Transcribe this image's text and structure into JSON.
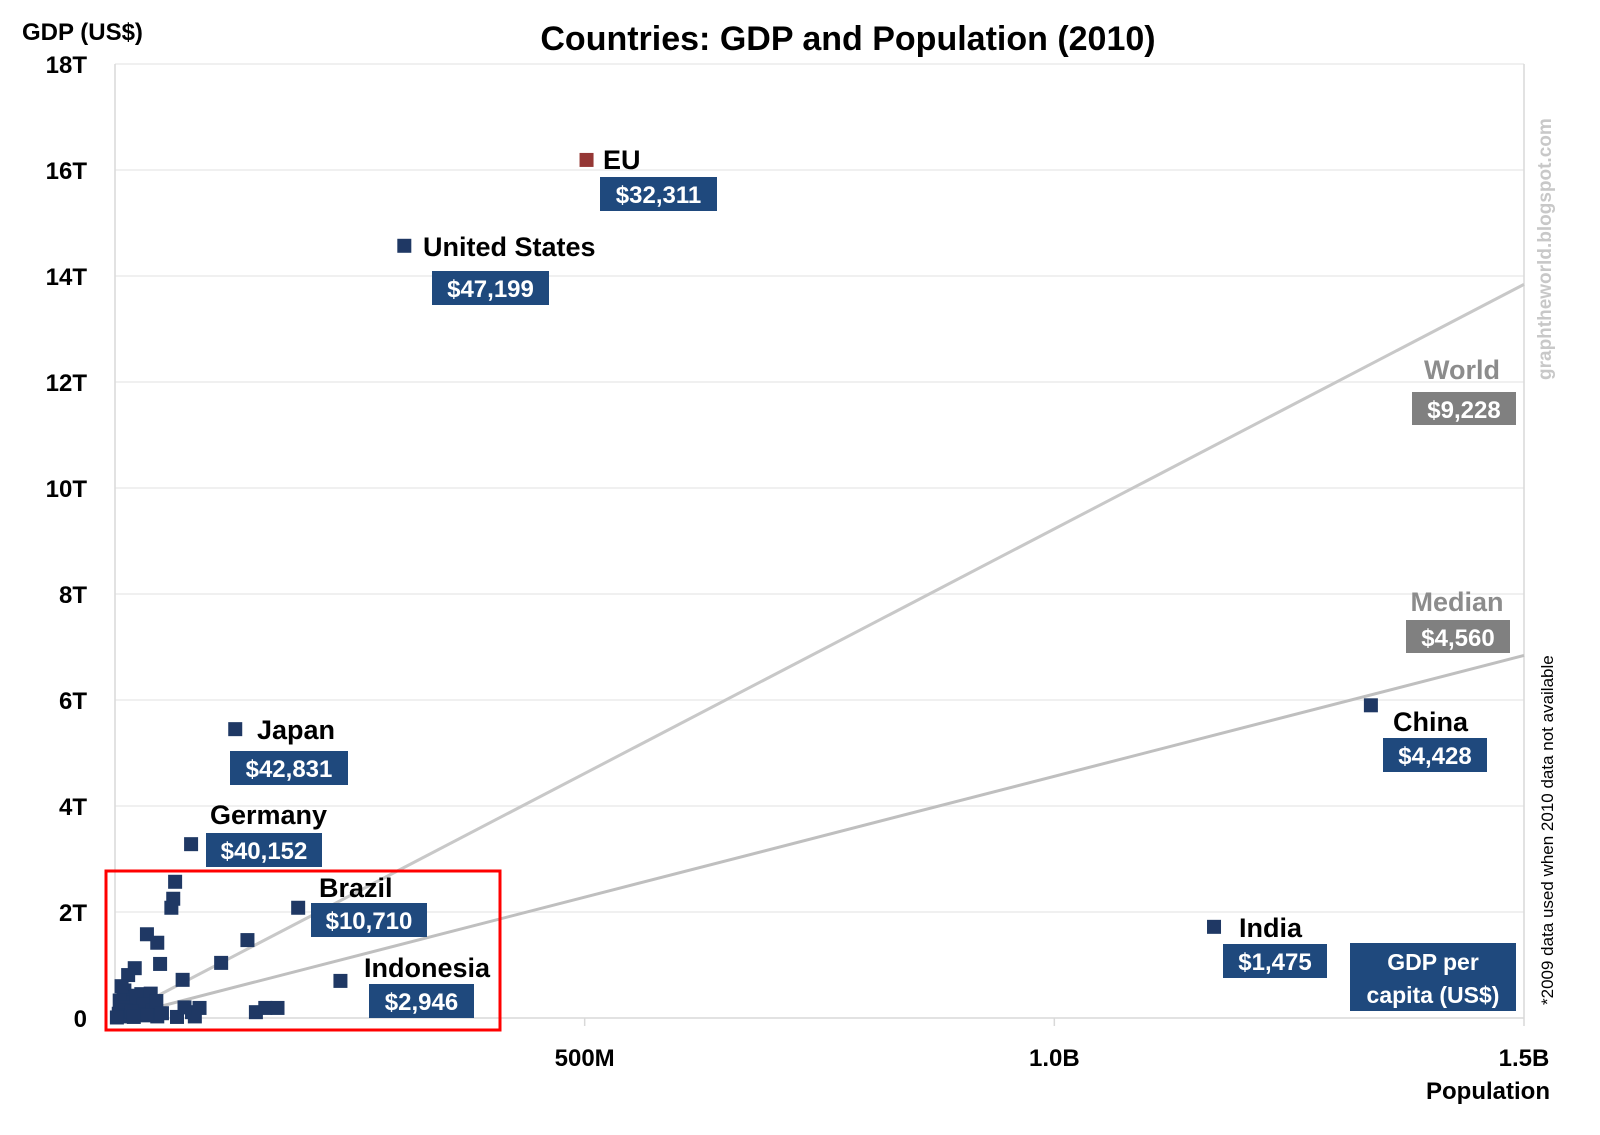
{
  "chart_data": {
    "type": "scatter",
    "title": "Countries: GDP and Population (2010)",
    "xlabel": "Population",
    "ylabel": "GDP (US$)",
    "xlim": [
      0,
      1500000000
    ],
    "ylim": [
      0,
      18000000000000
    ],
    "x_ticks": [
      {
        "value": 500000000,
        "label": "500M"
      },
      {
        "value": 1000000000,
        "label": "1.0B"
      },
      {
        "value": 1500000000,
        "label": "1.5B"
      }
    ],
    "y_ticks": [
      {
        "value": 0,
        "label": "0"
      },
      {
        "value": 2000000000000.0,
        "label": "2T"
      },
      {
        "value": 4000000000000.0,
        "label": "4T"
      },
      {
        "value": 6000000000000.0,
        "label": "6T"
      },
      {
        "value": 8000000000000.0,
        "label": "8T"
      },
      {
        "value": 10000000000000.0,
        "label": "10T"
      },
      {
        "value": 12000000000000.0,
        "label": "12T"
      },
      {
        "value": 14000000000000.0,
        "label": "14T"
      },
      {
        "value": 16000000000000.0,
        "label": "16T"
      },
      {
        "value": 18000000000000.0,
        "label": "18T"
      }
    ],
    "grid": "horizontal",
    "labeled_points": [
      {
        "name": "EU",
        "x": 502000000,
        "y": 16190000000000,
        "gdp_per_capita": "$32,311",
        "color": "#953735"
      },
      {
        "name": "United States",
        "x": 308000000,
        "y": 14570000000000,
        "gdp_per_capita": "$47,199",
        "color": "#1f3864"
      },
      {
        "name": "Japan",
        "x": 128000000,
        "y": 5450000000000,
        "gdp_per_capita": "$42,831",
        "color": "#1f3864"
      },
      {
        "name": "Germany",
        "x": 81000000,
        "y": 3280000000000,
        "gdp_per_capita": "$40,152",
        "color": "#1f3864"
      },
      {
        "name": "Brazil",
        "x": 195000000,
        "y": 2080000000000,
        "gdp_per_capita": "$10,710",
        "color": "#1f3864"
      },
      {
        "name": "Indonesia",
        "x": 240000000,
        "y": 700000000000,
        "gdp_per_capita": "$2,946",
        "color": "#1f3864"
      },
      {
        "name": "China",
        "x": 1337000000,
        "y": 5900000000000,
        "gdp_per_capita": "$4,428",
        "color": "#1f3864"
      },
      {
        "name": "India",
        "x": 1170000000,
        "y": 1720000000000,
        "gdp_per_capita": "$1,475",
        "color": "#1f3864"
      }
    ],
    "other_points": [
      [
        64000000,
        2570000000000
      ],
      [
        62000000,
        2250000000000
      ],
      [
        60000000,
        2080000000000
      ],
      [
        34000000,
        1580000000000
      ],
      [
        45000000,
        1420000000000
      ],
      [
        141000000,
        1470000000000
      ],
      [
        48000000,
        1020000000000
      ],
      [
        72000000,
        720000000000
      ],
      [
        113000000,
        1040000000000
      ],
      [
        21000000,
        940000000000
      ],
      [
        14000000,
        810000000000
      ],
      [
        150000000,
        110000000000
      ],
      [
        160000000,
        190000000000
      ],
      [
        173000000,
        190000000000
      ],
      [
        82000000,
        110000000000
      ],
      [
        90000000,
        190000000000
      ],
      [
        66000000,
        20000000000
      ],
      [
        85000000,
        30000000000
      ],
      [
        74000000,
        200000000000
      ],
      [
        28000000,
        450000000000
      ],
      [
        38000000,
        460000000000
      ],
      [
        10000000,
        520000000000
      ],
      [
        9000000,
        380000000000
      ],
      [
        16000000,
        300000000000
      ],
      [
        5000000,
        330000000000
      ],
      [
        8000000,
        200000000000
      ],
      [
        11000000,
        150000000000
      ],
      [
        23000000,
        420000000000
      ],
      [
        30000000,
        250000000000
      ],
      [
        40000000,
        140000000000
      ],
      [
        44000000,
        320000000000
      ],
      [
        26000000,
        60000000000
      ],
      [
        45000000,
        30000000000
      ],
      [
        50000000,
        90000000000
      ],
      [
        34000000,
        50000000000
      ],
      [
        4000000,
        80000000000
      ],
      [
        6000000,
        40000000000
      ],
      [
        12000000,
        30000000000
      ],
      [
        18000000,
        120000000000
      ],
      [
        20000000,
        20000000000
      ],
      [
        2000000,
        10000000000
      ],
      [
        7000000,
        600000000000
      ]
    ],
    "reference_lines": [
      {
        "name": "World",
        "gdp_per_capita": "$9,228",
        "slope": 9228,
        "color": "#c8c8c8",
        "label_color": "#8c8c8c"
      },
      {
        "name": "Median",
        "gdp_per_capita": "$4,560",
        "slope": 4560,
        "color": "#bfbfbf",
        "label_color": "#8c8c8c"
      }
    ],
    "legend_box": "GDP per capita (US$)",
    "footnote": "*2009 data used when 2010 data not available",
    "watermark": "graphtheworld.blogspot.com",
    "highlight": "red rectangle around small-country cluster near origin"
  },
  "colors": {
    "label_box": "#1f497d",
    "reference_box": "#808080",
    "highlight": "#ff0000"
  }
}
